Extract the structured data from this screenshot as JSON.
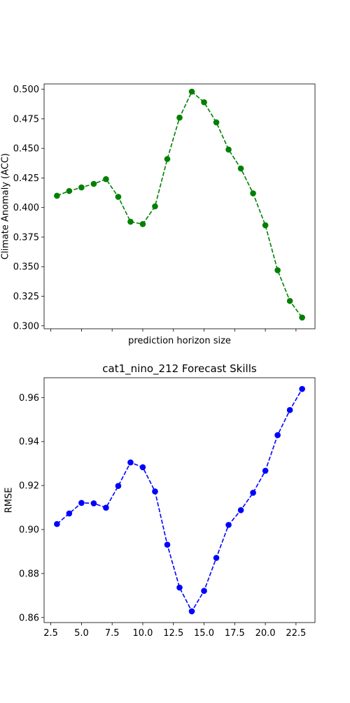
{
  "chart_data": [
    {
      "type": "line",
      "title": "",
      "xlabel": "prediction horizon size",
      "ylabel": "Climate Anomaly (ACC)",
      "x": [
        3,
        4,
        5,
        6,
        7,
        8,
        9,
        10,
        11,
        12,
        13,
        14,
        15,
        16,
        17,
        18,
        19,
        20,
        21,
        22,
        23
      ],
      "series": [
        {
          "color": "#008000",
          "line_style": "dashed",
          "marker": "circle",
          "values": [
            0.41,
            0.414,
            0.417,
            0.42,
            0.424,
            0.409,
            0.388,
            0.386,
            0.401,
            0.441,
            0.476,
            0.498,
            0.489,
            0.472,
            0.449,
            0.433,
            0.412,
            0.385,
            0.347,
            0.321,
            0.307
          ]
        }
      ],
      "xlim": [
        1.95,
        24.05
      ],
      "ylim": [
        0.2975,
        0.5045
      ],
      "xticks": [
        2.5,
        5.0,
        7.5,
        10.0,
        12.5,
        15.0,
        17.5,
        20.0,
        22.5
      ],
      "xtick_labels_visible": false,
      "yticks": [
        0.3,
        0.325,
        0.35,
        0.375,
        0.4,
        0.425,
        0.45,
        0.475,
        0.5
      ],
      "ytick_labels": [
        "0.300",
        "0.325",
        "0.350",
        "0.375",
        "0.400",
        "0.425",
        "0.450",
        "0.475",
        "0.500"
      ],
      "grid": false,
      "legend": "none"
    },
    {
      "type": "line",
      "title": "cat1_nino_212 Forecast Skills",
      "xlabel": "",
      "ylabel": "RMSE",
      "x": [
        3,
        4,
        5,
        6,
        7,
        8,
        9,
        10,
        11,
        12,
        13,
        14,
        15,
        16,
        17,
        18,
        19,
        20,
        21,
        22,
        23
      ],
      "series": [
        {
          "color": "#0000ff",
          "line_style": "dashed",
          "marker": "circle",
          "values": [
            0.9025,
            0.9073,
            0.9121,
            0.9119,
            0.9099,
            0.9198,
            0.9305,
            0.9283,
            0.9173,
            0.8931,
            0.8736,
            0.8628,
            0.8721,
            0.8871,
            0.9021,
            0.9088,
            0.9167,
            0.9267,
            0.9429,
            0.9543,
            0.9639
          ]
        }
      ],
      "xlim": [
        1.95,
        24.05
      ],
      "ylim": [
        0.8577,
        0.969
      ],
      "xticks": [
        2.5,
        5.0,
        7.5,
        10.0,
        12.5,
        15.0,
        17.5,
        20.0,
        22.5
      ],
      "xtick_labels": [
        "2.5",
        "5.0",
        "7.5",
        "10.0",
        "12.5",
        "15.0",
        "17.5",
        "20.0",
        "22.5"
      ],
      "xtick_labels_visible": true,
      "yticks": [
        0.86,
        0.88,
        0.9,
        0.92,
        0.94,
        0.96
      ],
      "ytick_labels": [
        "0.86",
        "0.88",
        "0.90",
        "0.92",
        "0.94",
        "0.96"
      ],
      "grid": false,
      "legend": "none"
    }
  ]
}
